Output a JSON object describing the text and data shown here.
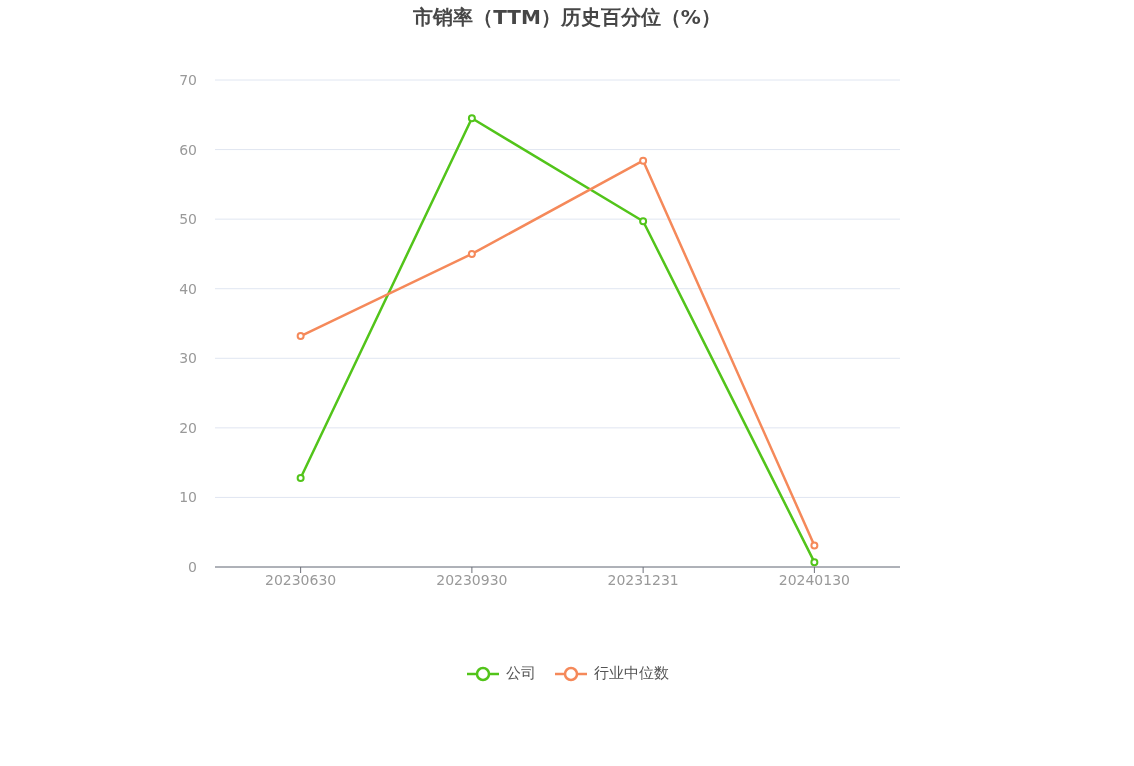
{
  "chart_data": {
    "type": "line",
    "title": "市销率（TTM）历史百分位（%）",
    "categories": [
      "20230630",
      "20230930",
      "20231231",
      "20240130"
    ],
    "series": [
      {
        "name": "公司",
        "color": "#52c41a",
        "values": [
          12.8,
          64.5,
          49.7,
          0.7
        ]
      },
      {
        "name": "行业中位数",
        "color": "#f5895a",
        "values": [
          33.2,
          45.0,
          58.4,
          3.1
        ]
      }
    ],
    "ylim": [
      0,
      70
    ],
    "yticks": [
      0,
      10,
      20,
      30,
      40,
      50,
      60,
      70
    ],
    "grid": "y",
    "legend": "bottom",
    "marker": "circle",
    "line_style": "solid"
  }
}
